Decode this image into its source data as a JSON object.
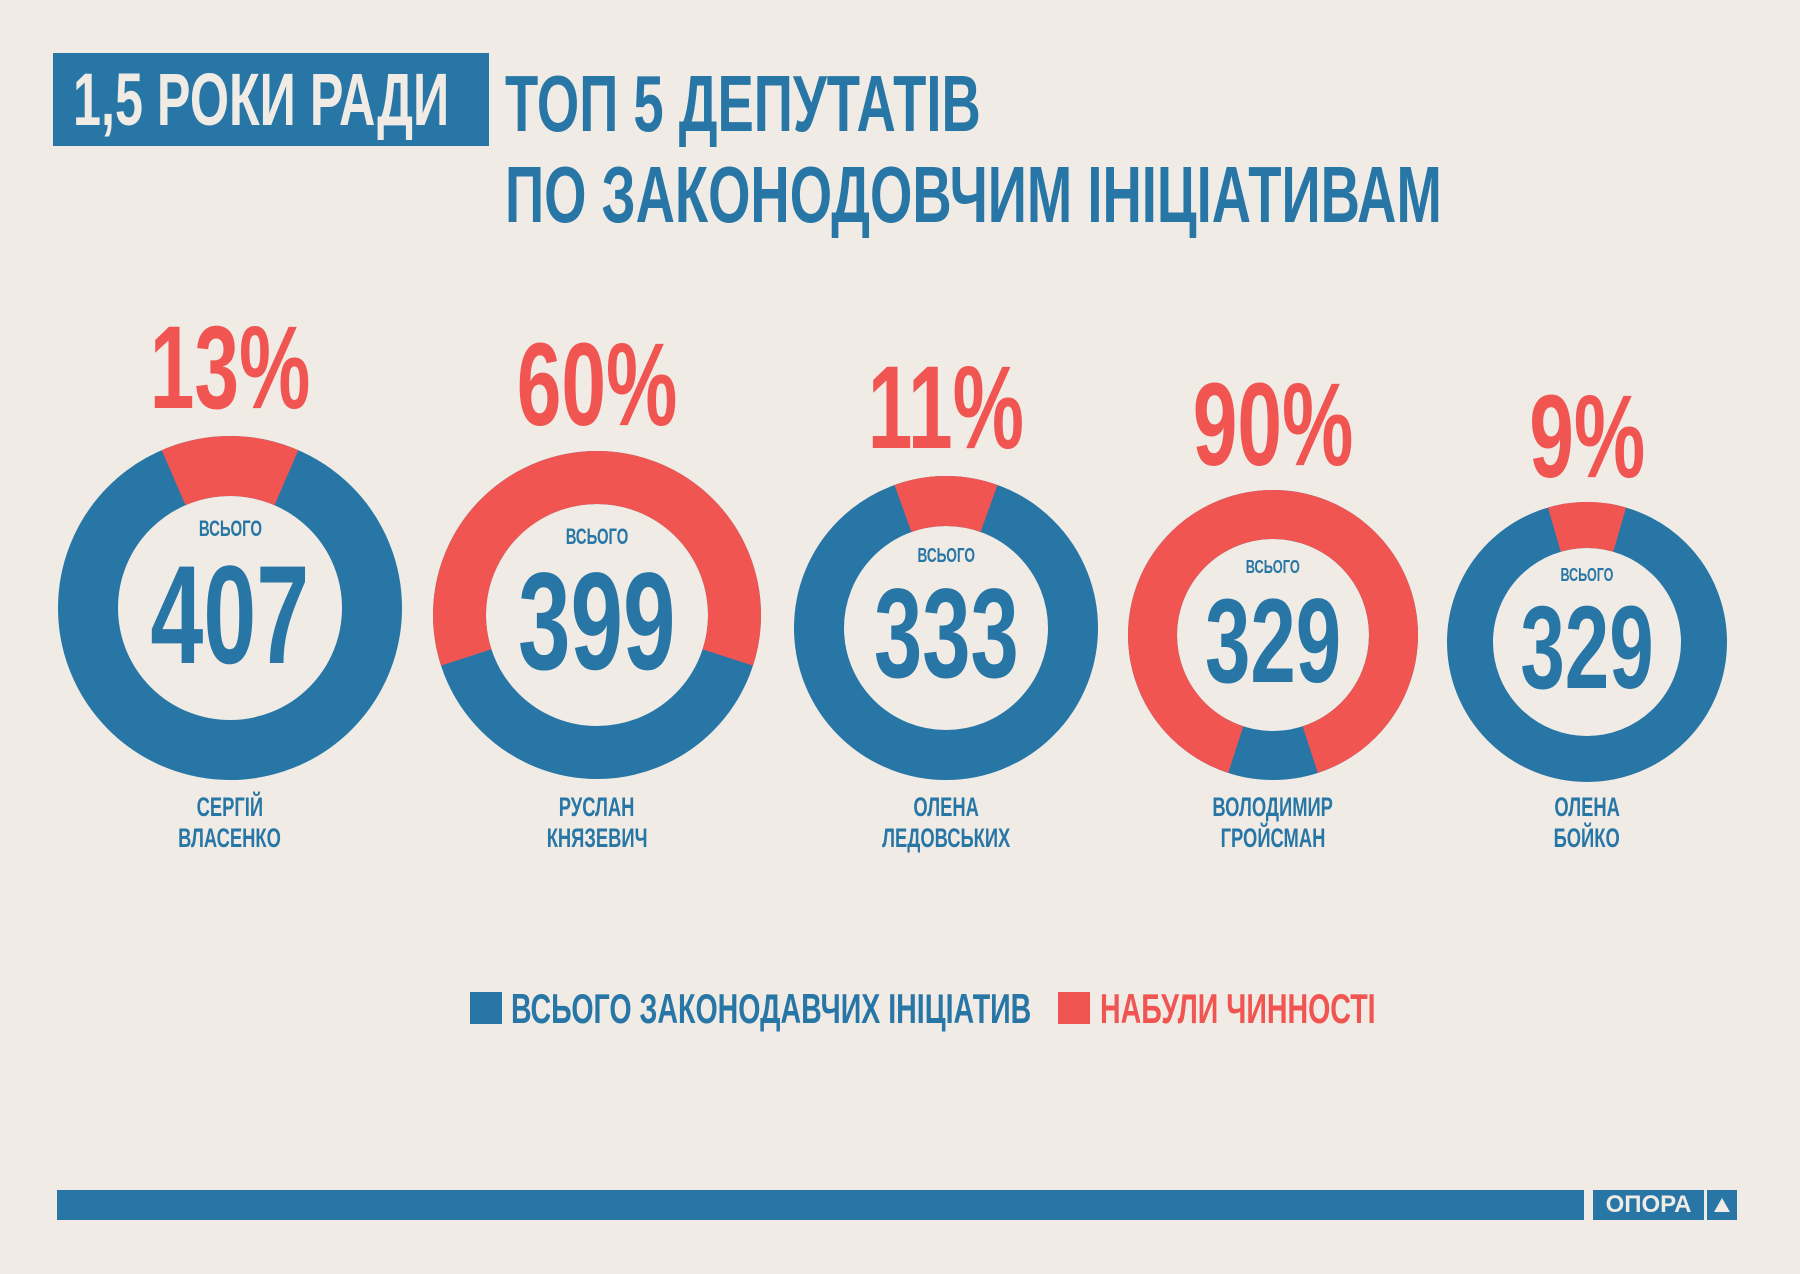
{
  "header": {
    "badge": "1,5 РОКИ РАДИ",
    "title_line1": "ТОП 5  ДЕПУТАТІВ",
    "title_line2": "ПО ЗАКОНОДОВЧИМ ІНІЦІАТИВАМ"
  },
  "colors": {
    "total": "#2776a6",
    "passed": "#f05552",
    "background": "#f0ebe5"
  },
  "chart_data": {
    "type": "pie",
    "title": "ТОП 5 ДЕПУТАТІВ ПО ЗАКОНОДОВЧИМ ІНІЦІАТИВАМ",
    "center_label": "ВСЬОГО",
    "legend": [
      "ВСЬОГО ЗАКОНОДАВЧИХ ІНІЦІАТИВ",
      "НАБУЛИ ЧИННОСТІ"
    ],
    "legend_placement": "bottom",
    "items": [
      {
        "first": "СЕРГІЙ",
        "last": "ВЛАСЕНКО",
        "total": 407,
        "passed_pct": 13,
        "pct_label": "13%"
      },
      {
        "first": "РУСЛАН",
        "last": "КНЯЗЕВИЧ",
        "total": 399,
        "passed_pct": 60,
        "pct_label": "60%"
      },
      {
        "first": "ОЛЕНА",
        "last": "ЛЕДОВСЬКИХ",
        "total": 333,
        "passed_pct": 11,
        "pct_label": "11%"
      },
      {
        "first": "ВОЛОДИМИР",
        "last": "ГРОЙСМАН",
        "total": 329,
        "passed_pct": 90,
        "pct_label": "90%"
      },
      {
        "first": "ОЛЕНА",
        "last": "БОЙКО",
        "total": 329,
        "passed_pct": 9,
        "pct_label": "9%"
      }
    ]
  },
  "footer": {
    "logo": "ОПОРА"
  }
}
